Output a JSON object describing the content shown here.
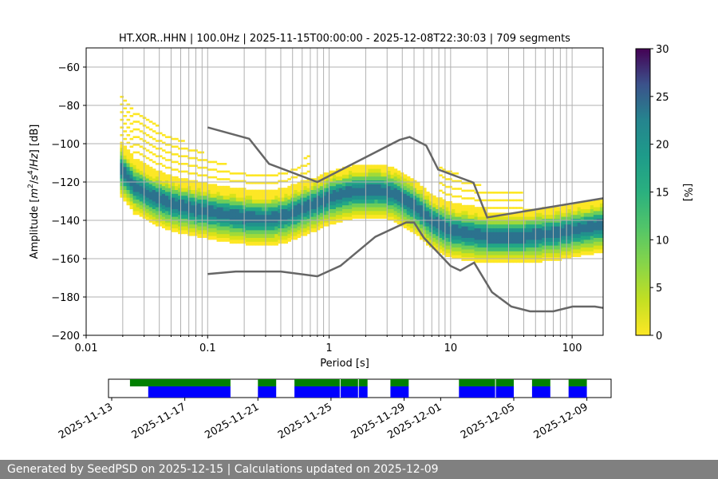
{
  "footer": {
    "generated_label": "Generated by SeedPSD on",
    "generated_date": "2025-12-15",
    "separator": "|",
    "updated_label": "Calculations updated on",
    "updated_date": "2025-12-09"
  },
  "colors": {
    "nlnm_nhnm": "#666666",
    "grid": "#b0b0b0",
    "coverage_data": "#0000ff",
    "coverage_psd": "#008000",
    "footer_bg": "#808080"
  },
  "chart_data": [
    {
      "type": "heatmap",
      "title": "HT.XOR..HHN | 100.0Hz | 2025-11-15T00:00:00 - 2025-12-08T22:30:03 | 709 segments",
      "xlabel": "Period [s]",
      "ylabel_prefix": "Amplitude [",
      "ylabel_suffix": "] [dB]",
      "x_scale": "log",
      "xlim": [
        0.01,
        180
      ],
      "x_ticks": [
        0.01,
        0.1,
        1,
        10,
        100
      ],
      "x_tick_labels": [
        "0.01",
        "0.1",
        "1",
        "10",
        "100"
      ],
      "ylim": [
        -200,
        -50
      ],
      "y_ticks": [
        -200,
        -180,
        -160,
        -140,
        -120,
        -100,
        -80,
        -60
      ],
      "y_tick_labels": [
        "−200",
        "−180",
        "−160",
        "−140",
        "−120",
        "−100",
        "−80",
        "−60"
      ],
      "grid": true,
      "colorbar": {
        "label": "[%]",
        "range": [
          0,
          30
        ],
        "ticks": [
          0,
          5,
          10,
          15,
          20,
          25,
          30
        ],
        "tick_labels": [
          "0",
          "5",
          "10",
          "15",
          "20",
          "25",
          "30"
        ],
        "colormap": "viridis_r"
      },
      "psd_mode_db": [
        {
          "period": 0.019,
          "db": -112
        },
        {
          "period": 0.025,
          "db": -122
        },
        {
          "period": 0.035,
          "db": -127
        },
        {
          "period": 0.05,
          "db": -131
        },
        {
          "period": 0.08,
          "db": -134
        },
        {
          "period": 0.12,
          "db": -136
        },
        {
          "period": 0.2,
          "db": -138
        },
        {
          "period": 0.3,
          "db": -139
        },
        {
          "period": 0.45,
          "db": -137
        },
        {
          "period": 0.7,
          "db": -132
        },
        {
          "period": 1.0,
          "db": -128
        },
        {
          "period": 1.5,
          "db": -125
        },
        {
          "period": 2.5,
          "db": -124
        },
        {
          "period": 3.5,
          "db": -126
        },
        {
          "period": 5,
          "db": -132
        },
        {
          "period": 7,
          "db": -140
        },
        {
          "period": 10,
          "db": -145
        },
        {
          "period": 20,
          "db": -148
        },
        {
          "period": 40,
          "db": -148
        },
        {
          "period": 80,
          "db": -146
        },
        {
          "period": 180,
          "db": -142
        }
      ],
      "nhnm": [
        {
          "period": 0.1,
          "db": -91.5
        },
        {
          "period": 0.22,
          "db": -97.4
        },
        {
          "period": 0.32,
          "db": -110.5
        },
        {
          "period": 0.8,
          "db": -120
        },
        {
          "period": 3.8,
          "db": -98
        },
        {
          "period": 4.6,
          "db": -96.5
        },
        {
          "period": 6.3,
          "db": -101
        },
        {
          "period": 7.9,
          "db": -113.5
        },
        {
          "period": 15.4,
          "db": -120.3
        },
        {
          "period": 20,
          "db": -138.5
        },
        {
          "period": 180,
          "db": -128.5
        }
      ],
      "nlnm": [
        {
          "period": 0.1,
          "db": -168
        },
        {
          "period": 0.17,
          "db": -166.7
        },
        {
          "period": 0.4,
          "db": -166.7
        },
        {
          "period": 0.8,
          "db": -169.2
        },
        {
          "period": 1.24,
          "db": -163.7
        },
        {
          "period": 2.4,
          "db": -148.6
        },
        {
          "period": 4.3,
          "db": -141.1
        },
        {
          "period": 5.0,
          "db": -141.1
        },
        {
          "period": 6.0,
          "db": -149
        },
        {
          "period": 10,
          "db": -163.8
        },
        {
          "period": 12,
          "db": -166.2
        },
        {
          "period": 15.6,
          "db": -162.1
        },
        {
          "period": 21.9,
          "db": -177.5
        },
        {
          "period": 31.6,
          "db": -185
        },
        {
          "period": 45,
          "db": -187.5
        },
        {
          "period": 70,
          "db": -187.5
        },
        {
          "period": 101,
          "db": -185
        },
        {
          "period": 154,
          "db": -185
        },
        {
          "period": 180,
          "db": -185.7
        }
      ]
    },
    {
      "type": "timeline",
      "x_ticks": [
        "2025-11-13",
        "2025-11-17",
        "2025-11-21",
        "2025-11-25",
        "2025-11-29",
        "2025-12-01",
        "2025-12-05",
        "2025-12-09"
      ],
      "xlim": [
        "2025-11-13T00:00:00",
        "2025-12-10T12:00:00"
      ],
      "data_segments": [
        [
          "2025-11-15T00:00:00",
          "2025-11-19T12:00:00"
        ],
        [
          "2025-11-21T00:00:00",
          "2025-11-22T00:00:00"
        ],
        [
          "2025-11-23T00:00:00",
          "2025-11-27T00:00:00"
        ],
        [
          "2025-11-28T06:00:00",
          "2025-11-29T06:00:00"
        ],
        [
          "2025-12-02T00:00:00",
          "2025-12-05T00:00:00"
        ],
        [
          "2025-12-06T00:00:00",
          "2025-12-07T00:00:00"
        ],
        [
          "2025-12-08T00:00:00",
          "2025-12-09T00:00:00"
        ]
      ],
      "psd_segments": [
        [
          "2025-11-14T00:00:00",
          "2025-11-19T12:00:00"
        ],
        [
          "2025-11-21T00:00:00",
          "2025-11-22T00:00:00"
        ],
        [
          "2025-11-23T00:00:00",
          "2025-11-27T00:00:00"
        ],
        [
          "2025-11-28T06:00:00",
          "2025-11-29T06:00:00"
        ],
        [
          "2025-12-02T00:00:00",
          "2025-12-05T00:00:00"
        ],
        [
          "2025-12-06T00:00:00",
          "2025-12-07T00:00:00"
        ],
        [
          "2025-12-08T00:00:00",
          "2025-12-09T00:00:00"
        ]
      ],
      "data_gap_markers": [
        "2025-11-25T12:00:00",
        "2025-11-26T12:00:00",
        "2025-12-04T00:00:00"
      ]
    }
  ]
}
